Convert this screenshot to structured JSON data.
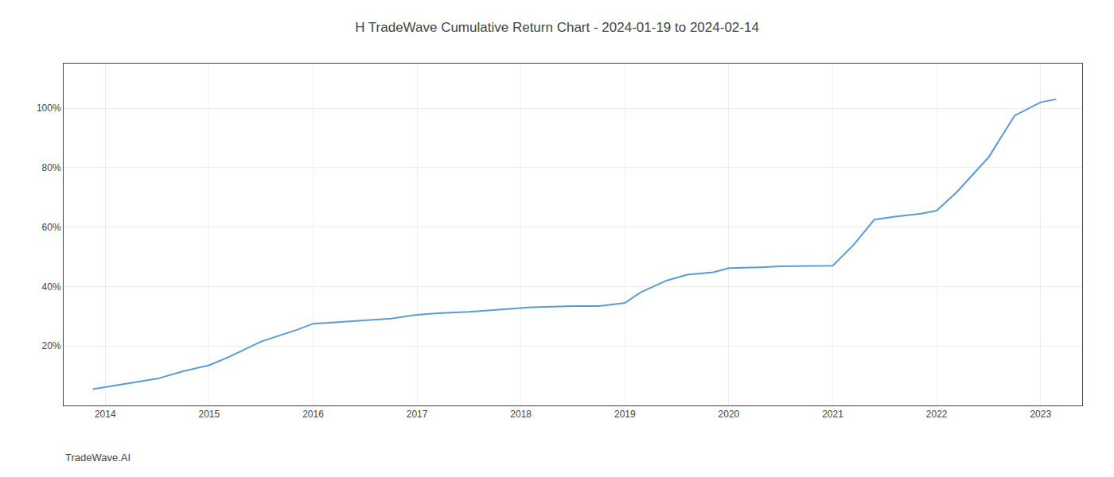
{
  "chart_data": {
    "type": "line",
    "title": "H TradeWave Cumulative Return Chart - 2024-01-19 to 2024-02-14",
    "annotations": [
      "TradeWave.AI"
    ],
    "x": [
      2013.88,
      2014.0,
      2014.25,
      2014.5,
      2014.75,
      2015.0,
      2015.2,
      2015.5,
      2015.85,
      2016.0,
      2016.15,
      2016.3,
      2016.5,
      2016.75,
      2017.0,
      2017.2,
      2017.5,
      2017.75,
      2018.0,
      2018.1,
      2018.3,
      2018.5,
      2018.75,
      2019.0,
      2019.15,
      2019.4,
      2019.6,
      2019.85,
      2020.0,
      2020.15,
      2020.3,
      2020.5,
      2020.75,
      2021.0,
      2021.2,
      2021.4,
      2021.6,
      2021.85,
      2022.0,
      2022.2,
      2022.5,
      2022.75,
      2023.0,
      2023.15
    ],
    "values": [
      0.055,
      0.062,
      0.075,
      0.09,
      0.115,
      0.135,
      0.165,
      0.215,
      0.255,
      0.275,
      0.278,
      0.282,
      0.287,
      0.292,
      0.305,
      0.31,
      0.315,
      0.322,
      0.327,
      0.33,
      0.332,
      0.334,
      0.334,
      0.345,
      0.38,
      0.42,
      0.44,
      0.448,
      0.462,
      0.463,
      0.465,
      0.468,
      0.47,
      0.47,
      0.54,
      0.625,
      0.635,
      0.645,
      0.655,
      0.72,
      0.835,
      0.975,
      1.02,
      1.03
    ],
    "color": "#5b9bd5",
    "xlim": [
      2013.6,
      2023.4
    ],
    "ylim": [
      0.0,
      1.15
    ],
    "xticks": [
      2014,
      2015,
      2016,
      2017,
      2018,
      2019,
      2020,
      2021,
      2022,
      2023
    ],
    "yticks": [
      {
        "value": 0.2,
        "label": "20%"
      },
      {
        "value": 0.4,
        "label": "40%"
      },
      {
        "value": 0.6,
        "label": "60%"
      },
      {
        "value": 0.8,
        "label": "80%"
      },
      {
        "value": 1.0,
        "label": "100%"
      }
    ],
    "grid": true
  }
}
